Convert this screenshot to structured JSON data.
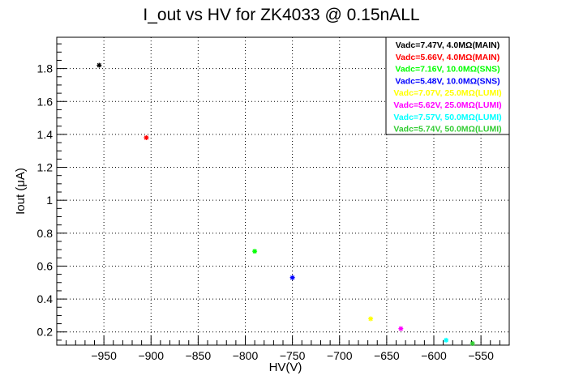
{
  "chart_data": {
    "type": "scatter",
    "title": "I_out vs HV for ZK4033 @ 0.15nALL",
    "xlabel": "HV(V)",
    "ylabel": "Iout (μA)",
    "xlim": [
      -1000,
      -520
    ],
    "ylim": [
      0.12,
      1.99
    ],
    "xticks": [
      -950,
      -900,
      -850,
      -800,
      -750,
      -700,
      -650,
      -600,
      -550
    ],
    "yticks": [
      0.2,
      0.4,
      0.6,
      0.8,
      1,
      1.2,
      1.4,
      1.6,
      1.8
    ],
    "xtick_labels": [
      "−950",
      "−900",
      "−850",
      "−800",
      "−750",
      "−700",
      "−650",
      "−600",
      "−550"
    ],
    "ytick_labels": [
      "0.2",
      "0.4",
      "0.6",
      "0.8",
      "1",
      "1.2",
      "1.4",
      "1.6",
      "1.8"
    ],
    "grid": true,
    "legend_position": "top-right",
    "series": [
      {
        "name": "Vadc=7.47V, 4.0MΩ(MAIN)",
        "color": "#000000",
        "x": -955,
        "y": 1.82
      },
      {
        "name": "Vadc=5.66V, 4.0MΩ(MAIN)",
        "color": "#ff0000",
        "x": -905,
        "y": 1.38
      },
      {
        "name": "Vadc=7.16V, 10.0MΩ(SNS)",
        "color": "#00ff00",
        "x": -790,
        "y": 0.69
      },
      {
        "name": "Vadc=5.48V, 10.0MΩ(SNS)",
        "color": "#0000ff",
        "x": -750,
        "y": 0.53
      },
      {
        "name": "Vadc=7.07V, 25.0MΩ(LUMI)",
        "color": "#ffff00",
        "x": -667,
        "y": 0.28
      },
      {
        "name": "Vadc=5.62V, 25.0MΩ(LUMI)",
        "color": "#ff00ff",
        "x": -635,
        "y": 0.22
      },
      {
        "name": "Vadc=7.57V, 50.0MΩ(LUMI)",
        "color": "#00ffff",
        "x": -587,
        "y": 0.15
      },
      {
        "name": "Vadc=5.74V, 50.0MΩ(LUMI)",
        "color": "#33cc33",
        "x": -559,
        "y": 0.13
      }
    ]
  }
}
